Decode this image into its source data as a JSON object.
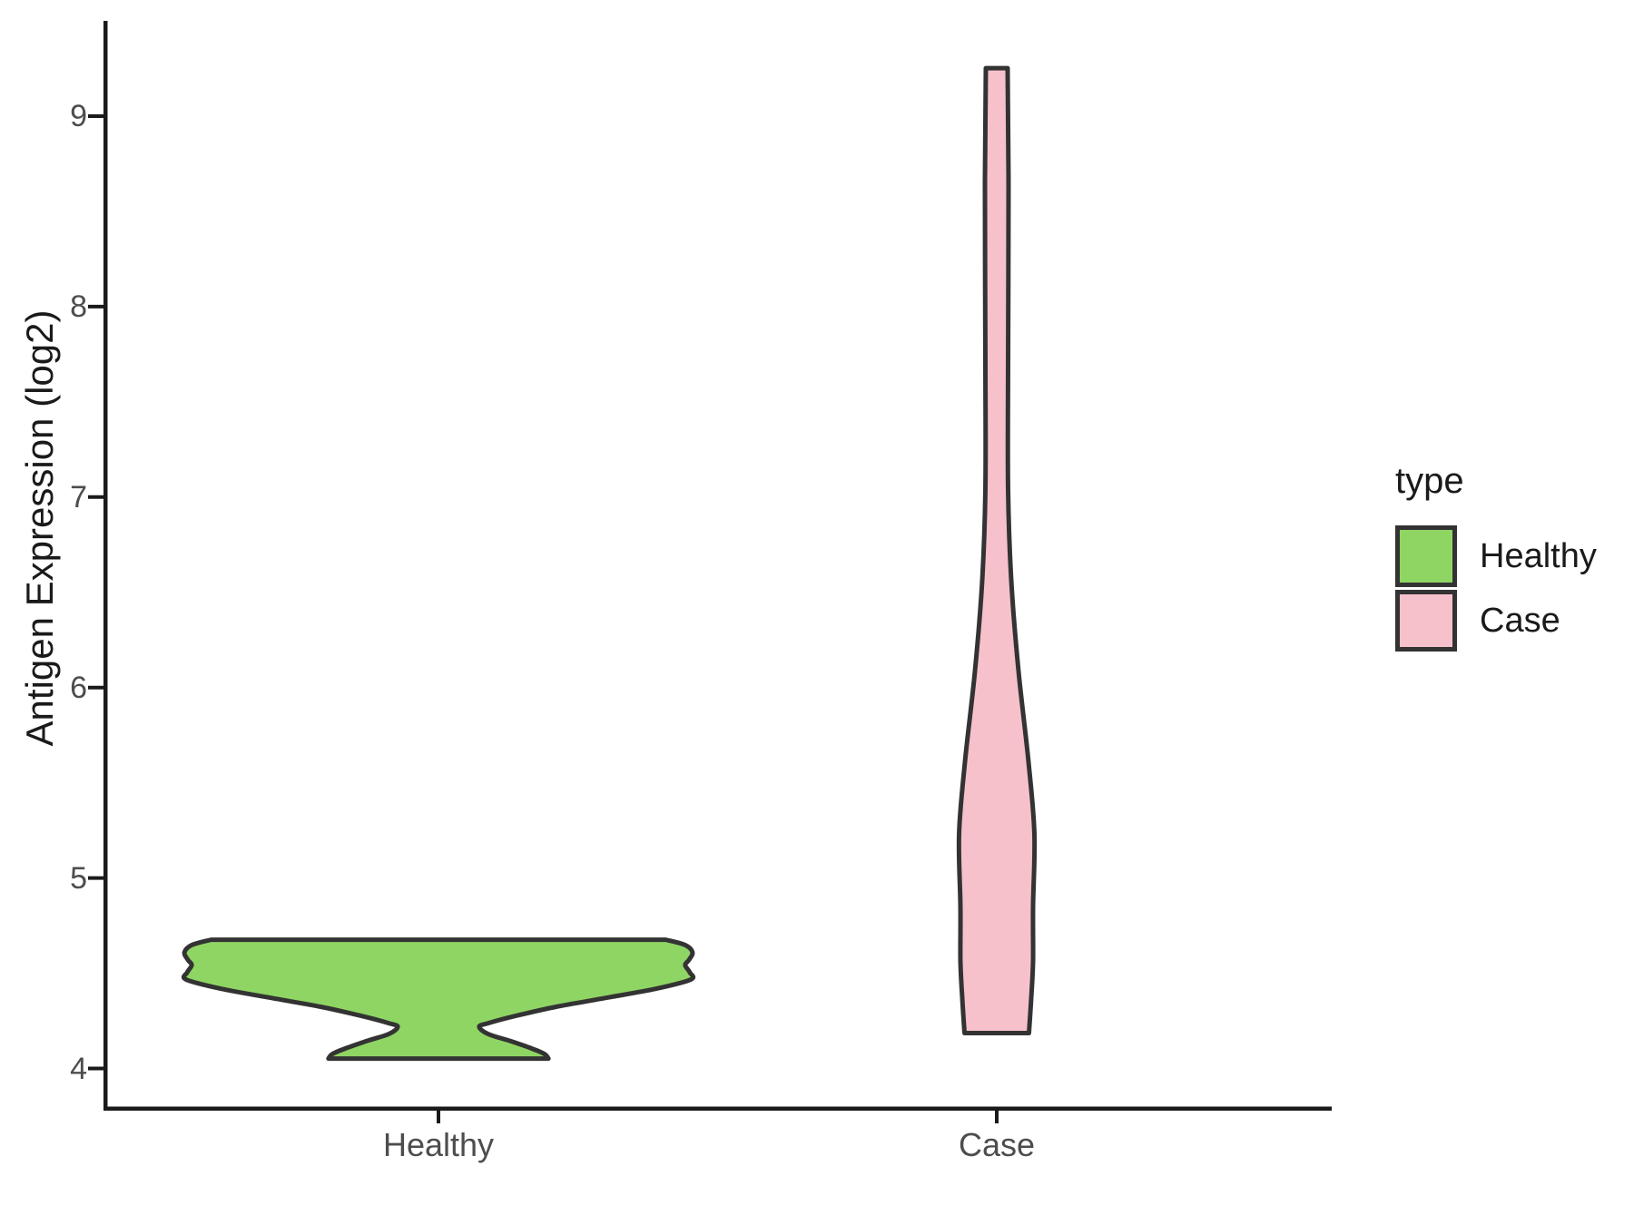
{
  "chart_data": {
    "type": "violin",
    "title": "",
    "xlabel": "",
    "ylabel": "Antigen Expression (log2)",
    "grid": false,
    "y_axis": {
      "ticks": [
        4,
        5,
        6,
        7,
        8,
        9
      ],
      "domain": [
        3.8,
        9.5
      ]
    },
    "categories": [
      "Healthy",
      "Case"
    ],
    "legend": {
      "title": "type",
      "position": "right",
      "entries": [
        {
          "label": "Healthy",
          "color": "#8FD564"
        },
        {
          "label": "Case",
          "color": "#F7C1CC"
        }
      ]
    },
    "colors": {
      "outline": "#333333",
      "axis": "#1a1a1a",
      "tick_label": "#4d4d4d"
    },
    "series": [
      {
        "name": "Healthy",
        "category": 1,
        "fill": "#8FD564",
        "outline": "#333333",
        "y_min": 4.05,
        "y_max": 4.68,
        "profile": [
          {
            "v": 4.676,
            "w": 0.407
          },
          {
            "v": 4.648,
            "w": 0.442
          },
          {
            "v": 4.61,
            "w": 0.455
          },
          {
            "v": 4.571,
            "w": 0.449
          },
          {
            "v": 4.543,
            "w": 0.442
          },
          {
            "v": 4.505,
            "w": 0.45
          },
          {
            "v": 4.467,
            "w": 0.452
          },
          {
            "v": 4.419,
            "w": 0.39
          },
          {
            "v": 4.371,
            "w": 0.301
          },
          {
            "v": 4.324,
            "w": 0.211
          },
          {
            "v": 4.276,
            "w": 0.138
          },
          {
            "v": 4.238,
            "w": 0.089
          },
          {
            "v": 4.219,
            "w": 0.073
          },
          {
            "v": 4.181,
            "w": 0.089
          },
          {
            "v": 4.143,
            "w": 0.13
          },
          {
            "v": 4.105,
            "w": 0.167
          },
          {
            "v": 4.076,
            "w": 0.19
          },
          {
            "v": 4.052,
            "w": 0.197
          }
        ]
      },
      {
        "name": "Case",
        "category": 2,
        "fill": "#F7C1CC",
        "outline": "#333333",
        "y_min": 4.19,
        "y_max": 9.25,
        "profile": [
          {
            "v": 9.252,
            "w": 0.0195
          },
          {
            "v": 8.657,
            "w": 0.0211
          },
          {
            "v": 7.705,
            "w": 0.0203
          },
          {
            "v": 7.038,
            "w": 0.0203
          },
          {
            "v": 6.562,
            "w": 0.026
          },
          {
            "v": 6.086,
            "w": 0.039
          },
          {
            "v": 5.61,
            "w": 0.0569
          },
          {
            "v": 5.229,
            "w": 0.0675
          },
          {
            "v": 4.848,
            "w": 0.065
          },
          {
            "v": 4.562,
            "w": 0.065
          },
          {
            "v": 4.371,
            "w": 0.0618
          },
          {
            "v": 4.186,
            "w": 0.0577
          }
        ]
      }
    ]
  }
}
